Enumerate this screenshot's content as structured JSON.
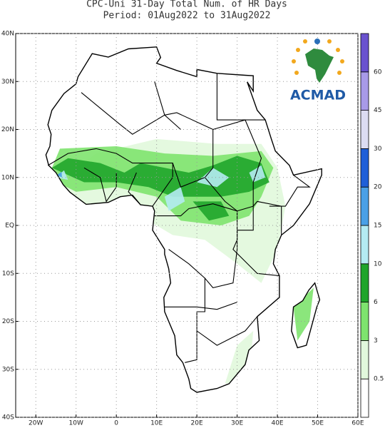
{
  "title_line1": "CPC-Uni 31-Day Total Num. of HR Days",
  "title_line2": "Period: 01Aug2022 to 31Aug2022",
  "logo_text": "ACMAD",
  "map": {
    "xlim": [
      -25,
      60
    ],
    "ylim": [
      -40,
      40
    ],
    "xticks": [
      {
        "value": -20,
        "label": "20W"
      },
      {
        "value": -10,
        "label": "10W"
      },
      0,
      {
        "value": 10,
        "label": "10E"
      },
      {
        "value": 20,
        "label": "20E"
      },
      {
        "value": 30,
        "label": "30E"
      },
      {
        "value": 40,
        "label": "40E"
      },
      {
        "value": 50,
        "label": "50E"
      },
      {
        "value": 60,
        "label": "60E"
      }
    ],
    "yticks": [
      {
        "value": -40,
        "label": "40S"
      },
      {
        "value": -30,
        "label": "30S"
      },
      {
        "value": -20,
        "label": "20S"
      },
      {
        "value": -10,
        "label": "10S"
      },
      {
        "value": 0,
        "label": "EQ"
      },
      {
        "value": 10,
        "label": "10N"
      },
      {
        "value": 20,
        "label": "20N"
      },
      {
        "value": 30,
        "label": "30N"
      },
      {
        "value": 40,
        "label": "40N"
      }
    ],
    "grid": true
  },
  "colorbar": {
    "levels": [
      0.5,
      3,
      6,
      10,
      15,
      20,
      30,
      45,
      60
    ],
    "colors": [
      "#ffffff",
      "#e1f8dc",
      "#7ee36e",
      "#20a52b",
      "#b4ebf2",
      "#4aa0e6",
      "#1f5fd8",
      "#dcdcf2",
      "#a89ae8",
      "#6a52cf"
    ]
  }
}
